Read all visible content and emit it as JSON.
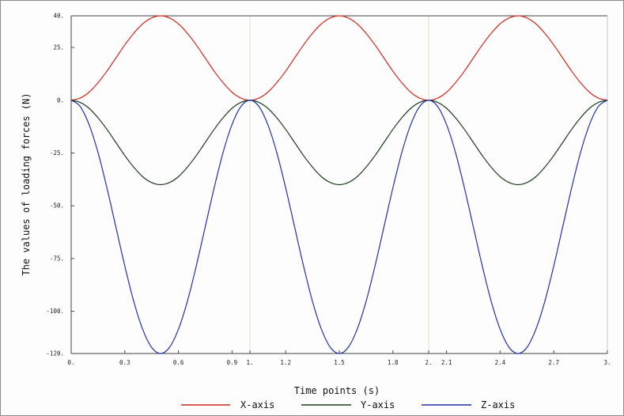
{
  "chart_data": {
    "type": "line",
    "title": "",
    "xlabel": "Time points (s)",
    "ylabel": "The values of loading forces (N)",
    "xlim": [
      0,
      3
    ],
    "ylim": [
      -120,
      40
    ],
    "x_ticks": [
      {
        "value": 0,
        "label": "0."
      },
      {
        "value": 0.3,
        "label": "0.3"
      },
      {
        "value": 0.6,
        "label": "0.6"
      },
      {
        "value": 0.9,
        "label": "0.9"
      },
      {
        "value": 1,
        "label": "1."
      },
      {
        "value": 1.2,
        "label": "1.2"
      },
      {
        "value": 1.5,
        "label": "1.5"
      },
      {
        "value": 1.8,
        "label": "1.8"
      },
      {
        "value": 2,
        "label": "2."
      },
      {
        "value": 2.1,
        "label": "2.1"
      },
      {
        "value": 2.4,
        "label": "2.4"
      },
      {
        "value": 2.7,
        "label": "2.7"
      },
      {
        "value": 3,
        "label": "3."
      }
    ],
    "y_ticks": [
      {
        "value": 40,
        "label": "40."
      },
      {
        "value": 25,
        "label": "25."
      },
      {
        "value": 0,
        "label": "0."
      },
      {
        "value": -25,
        "label": "-25."
      },
      {
        "value": -50,
        "label": "-50."
      },
      {
        "value": -75,
        "label": "-75."
      },
      {
        "value": -100,
        "label": "-100."
      },
      {
        "value": -120,
        "label": "-120."
      }
    ],
    "vertical_gridlines_at": [
      1,
      2
    ],
    "legend_position": "bottom",
    "x": [
      0,
      0.05,
      0.1,
      0.15,
      0.2,
      0.25,
      0.3,
      0.35,
      0.4,
      0.45,
      0.5,
      0.55,
      0.6,
      0.65,
      0.7,
      0.75,
      0.8,
      0.85,
      0.9,
      0.95,
      1,
      1.05,
      1.1,
      1.15,
      1.2,
      1.25,
      1.3,
      1.35,
      1.4,
      1.45,
      1.5,
      1.55,
      1.6,
      1.65,
      1.7,
      1.75,
      1.8,
      1.85,
      1.9,
      1.95,
      2,
      2.05,
      2.1,
      2.15,
      2.2,
      2.25,
      2.3,
      2.35,
      2.4,
      2.45,
      2.5,
      2.55,
      2.6,
      2.65,
      2.7,
      2.75,
      2.8,
      2.85,
      2.9,
      2.95,
      3
    ],
    "series": [
      {
        "name": "X-axis",
        "color": "#d42a1e",
        "values": [
          0,
          1,
          3.8,
          8.3,
          13.8,
          20,
          26.2,
          31.7,
          36.2,
          39,
          40,
          39,
          36.2,
          31.7,
          26.2,
          20,
          13.8,
          8.3,
          3.8,
          1,
          0,
          1,
          3.8,
          8.3,
          13.8,
          20,
          26.2,
          31.7,
          36.2,
          39,
          40,
          39,
          36.2,
          31.7,
          26.2,
          20,
          13.8,
          8.3,
          3.8,
          1,
          0,
          1,
          3.8,
          8.3,
          13.8,
          20,
          26.2,
          31.7,
          36.2,
          39,
          40,
          39,
          36.2,
          31.7,
          26.2,
          20,
          13.8,
          8.3,
          3.8,
          1,
          0
        ]
      },
      {
        "name": "Y-axis",
        "color": "#1e3d1e",
        "values": [
          0,
          -1,
          -3.8,
          -8.3,
          -13.8,
          -20,
          -26.2,
          -31.7,
          -36.2,
          -39,
          -40,
          -39,
          -36.2,
          -31.7,
          -26.2,
          -20,
          -13.8,
          -8.3,
          -3.8,
          -1,
          0,
          -1,
          -3.8,
          -8.3,
          -13.8,
          -20,
          -26.2,
          -31.7,
          -36.2,
          -39,
          -40,
          -39,
          -36.2,
          -31.7,
          -26.2,
          -20,
          -13.8,
          -8.3,
          -3.8,
          -1,
          0,
          -1,
          -3.8,
          -8.3,
          -13.8,
          -20,
          -26.2,
          -31.7,
          -36.2,
          -39,
          -40,
          -39,
          -36.2,
          -31.7,
          -26.2,
          -20,
          -13.8,
          -8.3,
          -3.8,
          -1,
          0
        ]
      },
      {
        "name": "Z-axis",
        "color": "#2233aa",
        "values": [
          0,
          -2.9,
          -11.5,
          -24.7,
          -41.5,
          -60,
          -78.5,
          -95.3,
          -108.5,
          -117.1,
          -120,
          -117.1,
          -108.5,
          -95.3,
          -78.5,
          -60,
          -41.5,
          -24.7,
          -11.5,
          -2.9,
          0,
          -2.9,
          -11.5,
          -24.7,
          -41.5,
          -60,
          -78.5,
          -95.3,
          -108.5,
          -117.1,
          -120,
          -117.1,
          -108.5,
          -95.3,
          -78.5,
          -60,
          -41.5,
          -24.7,
          -11.5,
          -2.9,
          0,
          -2.9,
          -11.5,
          -24.7,
          -41.5,
          -60,
          -78.5,
          -95.3,
          -108.5,
          -117.1,
          -120,
          -117.1,
          -108.5,
          -95.3,
          -78.5,
          -60,
          -41.5,
          -24.7,
          -11.5,
          -2.9,
          0
        ]
      }
    ]
  }
}
